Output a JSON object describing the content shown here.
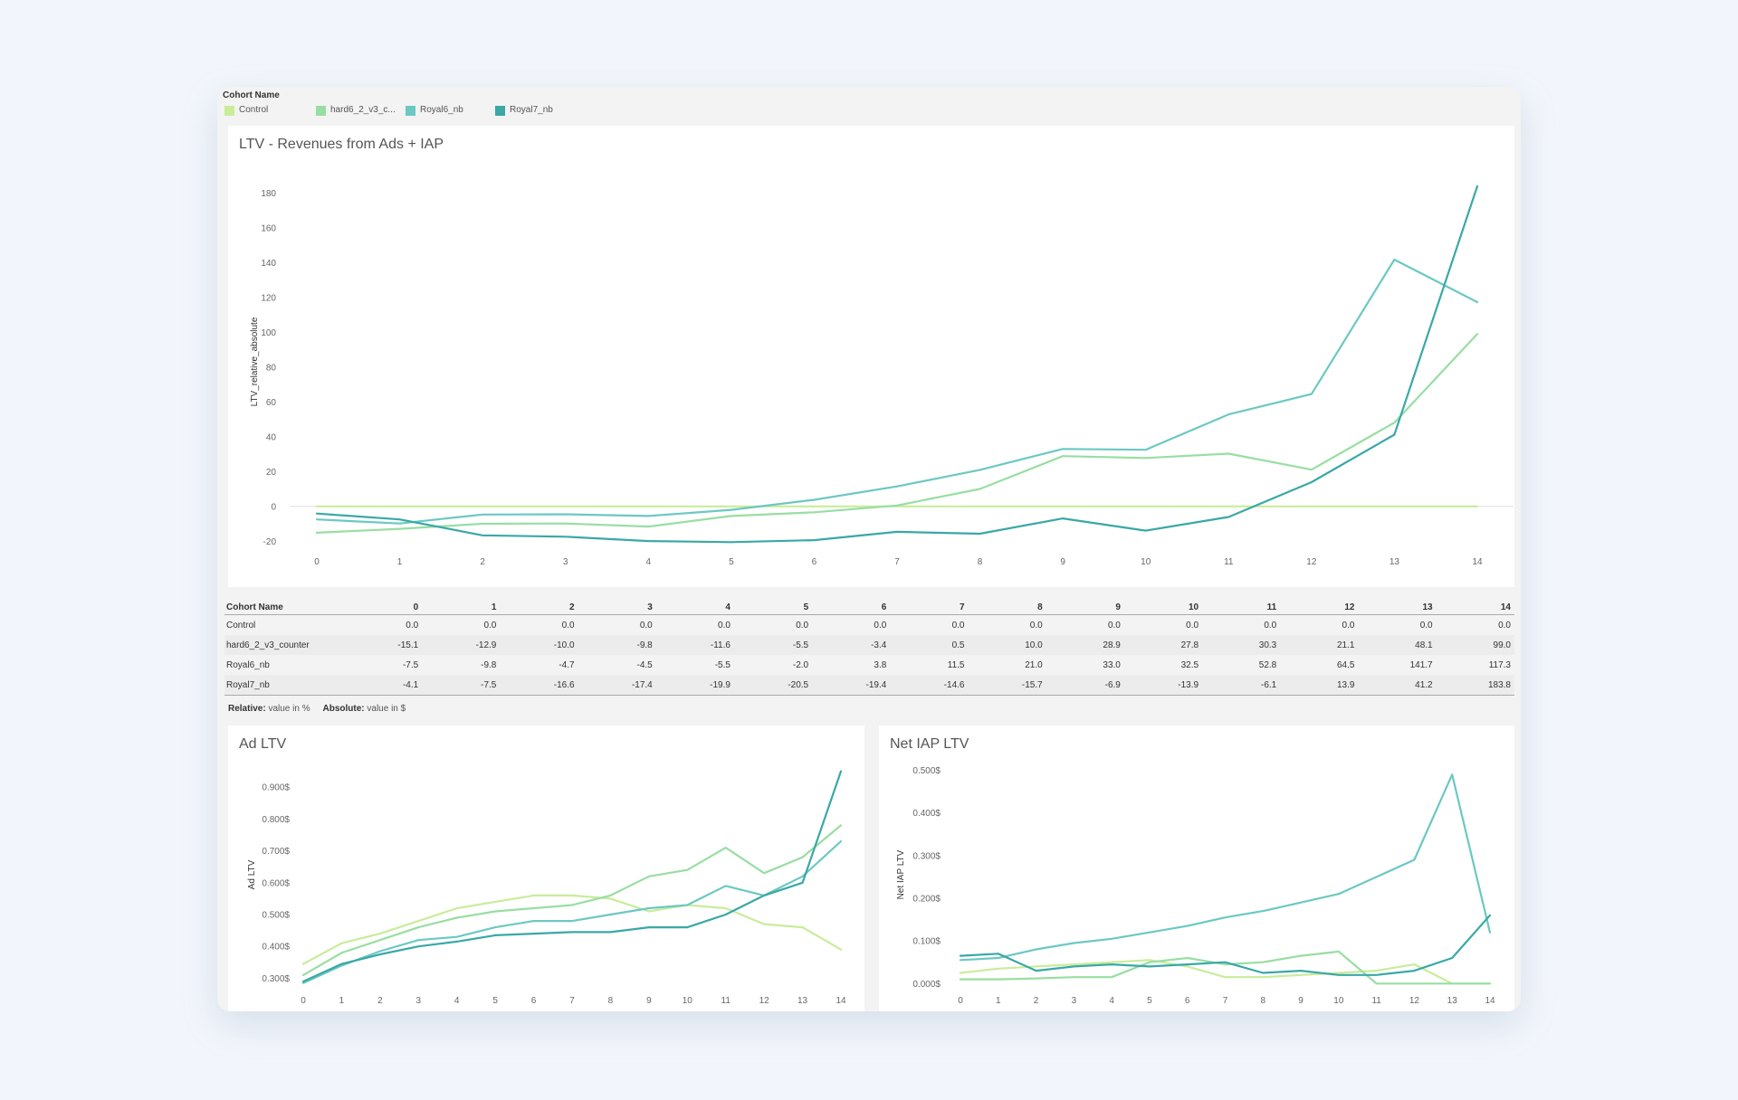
{
  "legend": {
    "title": "Cohort Name",
    "items": [
      {
        "label": "Control",
        "color": "#c9ec9b"
      },
      {
        "label": "hard6_2_v3_c...",
        "color": "#98dea3"
      },
      {
        "label": "Royal6_nb",
        "color": "#6cc8c2"
      },
      {
        "label": "Royal7_nb",
        "color": "#3aa8a6"
      }
    ]
  },
  "main_chart": {
    "title": "LTV - Revenues from Ads + IAP"
  },
  "table": {
    "header_label": "Cohort Name",
    "columns": [
      "0",
      "1",
      "2",
      "3",
      "4",
      "5",
      "6",
      "7",
      "8",
      "9",
      "10",
      "11",
      "12",
      "13",
      "14"
    ],
    "rows": [
      {
        "name": "Control",
        "values": [
          "0.0",
          "0.0",
          "0.0",
          "0.0",
          "0.0",
          "0.0",
          "0.0",
          "0.0",
          "0.0",
          "0.0",
          "0.0",
          "0.0",
          "0.0",
          "0.0",
          "0.0"
        ]
      },
      {
        "name": "hard6_2_v3_counter",
        "values": [
          "-15.1",
          "-12.9",
          "-10.0",
          "-9.8",
          "-11.6",
          "-5.5",
          "-3.4",
          "0.5",
          "10.0",
          "28.9",
          "27.8",
          "30.3",
          "21.1",
          "48.1",
          "99.0"
        ]
      },
      {
        "name": "Royal6_nb",
        "values": [
          "-7.5",
          "-9.8",
          "-4.7",
          "-4.5",
          "-5.5",
          "-2.0",
          "3.8",
          "11.5",
          "21.0",
          "33.0",
          "32.5",
          "52.8",
          "64.5",
          "141.7",
          "117.3"
        ]
      },
      {
        "name": "Royal7_nb",
        "values": [
          "-4.1",
          "-7.5",
          "-16.6",
          "-17.4",
          "-19.9",
          "-20.5",
          "-19.4",
          "-14.6",
          "-15.7",
          "-6.9",
          "-13.9",
          "-6.1",
          "13.9",
          "41.2",
          "183.8"
        ]
      }
    ]
  },
  "note": {
    "relative_label": "Relative:",
    "relative_text": " value in %",
    "absolute_label": "Absolute:",
    "absolute_text": " value in $"
  },
  "ad_chart": {
    "title": "Ad LTV"
  },
  "iap_chart": {
    "title": "Net IAP LTV"
  },
  "chart_data": [
    {
      "type": "line",
      "title": "LTV - Revenues from Ads + IAP",
      "xlabel": "",
      "ylabel": "LTV_relative_absolute",
      "x": [
        0,
        1,
        2,
        3,
        4,
        5,
        6,
        7,
        8,
        9,
        10,
        11,
        12,
        13,
        14
      ],
      "yticks": [
        -20,
        0,
        20,
        40,
        60,
        80,
        100,
        120,
        140,
        160,
        180
      ],
      "ylim": [
        -24,
        190
      ],
      "grid": false,
      "series": [
        {
          "name": "Control",
          "color": "#c9ec9b",
          "values": [
            0,
            0,
            0,
            0,
            0,
            0,
            0,
            0,
            0,
            0,
            0,
            0,
            0,
            0,
            0
          ]
        },
        {
          "name": "hard6_2_v3_counter",
          "color": "#98dea3",
          "values": [
            -15.1,
            -12.9,
            -10.0,
            -9.8,
            -11.6,
            -5.5,
            -3.4,
            0.5,
            10.0,
            28.9,
            27.8,
            30.3,
            21.1,
            48.1,
            99.0
          ]
        },
        {
          "name": "Royal6_nb",
          "color": "#6cc8c2",
          "values": [
            -7.5,
            -9.8,
            -4.7,
            -4.5,
            -5.5,
            -2.0,
            3.8,
            11.5,
            21.0,
            33.0,
            32.5,
            52.8,
            64.5,
            141.7,
            117.3
          ]
        },
        {
          "name": "Royal7_nb",
          "color": "#3aa8a6",
          "values": [
            -4.1,
            -7.5,
            -16.6,
            -17.4,
            -19.9,
            -20.5,
            -19.4,
            -14.6,
            -15.7,
            -6.9,
            -13.9,
            -6.1,
            13.9,
            41.2,
            183.8
          ]
        }
      ]
    },
    {
      "type": "line",
      "title": "Ad LTV",
      "xlabel": "",
      "ylabel": "Ad LTV",
      "x": [
        0,
        1,
        2,
        3,
        4,
        5,
        6,
        7,
        8,
        9,
        10,
        11,
        12,
        13,
        14
      ],
      "yticks": [
        0.3,
        0.4,
        0.5,
        0.6,
        0.7,
        0.8,
        0.9
      ],
      "ytick_labels": [
        "0.300$",
        "0.400$",
        "0.500$",
        "0.600$",
        "0.700$",
        "0.800$",
        "0.900$"
      ],
      "ylim": [
        0.27,
        0.98
      ],
      "grid": false,
      "series": [
        {
          "name": "Control",
          "color": "#c9ec9b",
          "values": [
            0.345,
            0.41,
            0.44,
            0.48,
            0.52,
            0.54,
            0.56,
            0.56,
            0.55,
            0.51,
            0.53,
            0.52,
            0.47,
            0.46,
            0.39
          ]
        },
        {
          "name": "hard6_2_v3_counter",
          "color": "#98dea3",
          "values": [
            0.31,
            0.38,
            0.42,
            0.46,
            0.49,
            0.51,
            0.52,
            0.53,
            0.56,
            0.62,
            0.64,
            0.71,
            0.63,
            0.68,
            0.78
          ]
        },
        {
          "name": "Royal6_nb",
          "color": "#6cc8c2",
          "values": [
            0.285,
            0.34,
            0.385,
            0.42,
            0.43,
            0.46,
            0.48,
            0.48,
            0.5,
            0.52,
            0.53,
            0.59,
            0.56,
            0.62,
            0.73
          ]
        },
        {
          "name": "Royal7_nb",
          "color": "#3aa8a6",
          "values": [
            0.29,
            0.345,
            0.375,
            0.4,
            0.415,
            0.435,
            0.44,
            0.445,
            0.445,
            0.46,
            0.46,
            0.5,
            0.56,
            0.6,
            0.95
          ]
        }
      ]
    },
    {
      "type": "line",
      "title": "Net IAP LTV",
      "xlabel": "",
      "ylabel": "Net IAP LTV",
      "x": [
        0,
        1,
        2,
        3,
        4,
        5,
        6,
        7,
        8,
        9,
        10,
        11,
        12,
        13,
        14
      ],
      "yticks": [
        0.0,
        0.1,
        0.2,
        0.3,
        0.4,
        0.5
      ],
      "ytick_labels": [
        "0.000$",
        "0.100$",
        "0.200$",
        "0.300$",
        "0.400$",
        "0.500$"
      ],
      "ylim": [
        -0.01,
        0.52
      ],
      "grid": false,
      "series": [
        {
          "name": "Control",
          "color": "#c9ec9b",
          "values": [
            0.025,
            0.035,
            0.04,
            0.045,
            0.05,
            0.055,
            0.04,
            0.015,
            0.015,
            0.02,
            0.025,
            0.03,
            0.045,
            0.0,
            0.0
          ]
        },
        {
          "name": "hard6_2_v3_counter",
          "color": "#98dea3",
          "values": [
            0.01,
            0.01,
            0.012,
            0.015,
            0.015,
            0.05,
            0.06,
            0.045,
            0.05,
            0.065,
            0.075,
            0.0,
            0.0,
            0.0,
            0.0
          ]
        },
        {
          "name": "Royal6_nb",
          "color": "#6cc8c2",
          "values": [
            0.055,
            0.06,
            0.08,
            0.095,
            0.105,
            0.12,
            0.135,
            0.155,
            0.17,
            0.19,
            0.21,
            0.25,
            0.29,
            0.49,
            0.12
          ]
        },
        {
          "name": "Royal7_nb",
          "color": "#3aa8a6",
          "values": [
            0.065,
            0.07,
            0.03,
            0.04,
            0.045,
            0.04,
            0.045,
            0.05,
            0.025,
            0.03,
            0.02,
            0.02,
            0.03,
            0.06,
            0.16
          ]
        }
      ]
    }
  ]
}
